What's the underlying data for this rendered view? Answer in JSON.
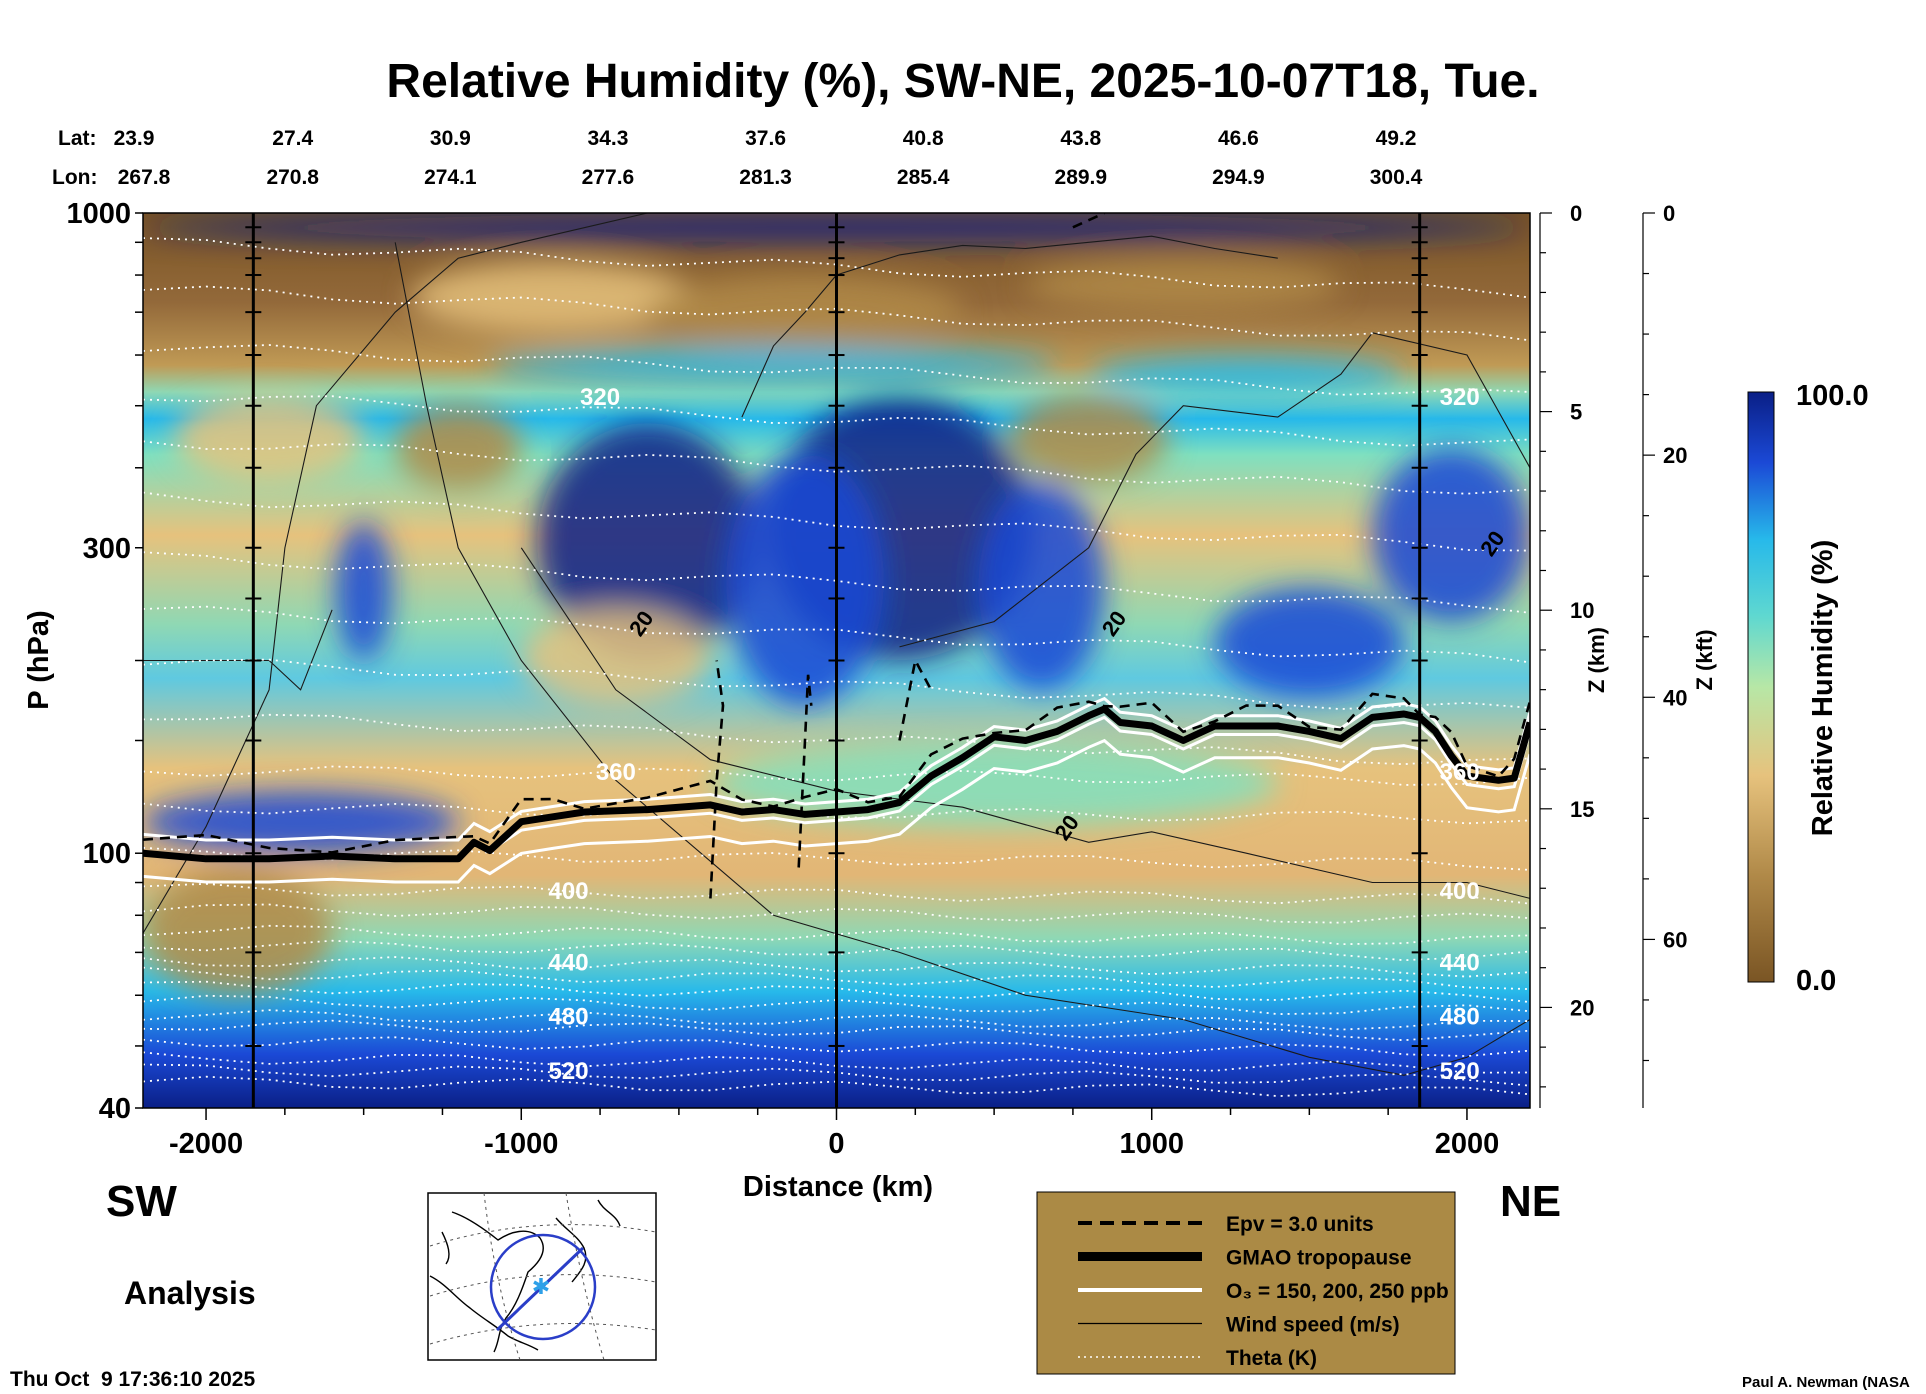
{
  "title": "Relative Humidity (%), SW-NE, 2025-10-07T18, Tue.",
  "colors": {
    "dry_dark": "#7a5524",
    "dry": "#b08948",
    "mid": "#e6c27d",
    "moist": "#7fe0c0",
    "wet": "#27b9ea",
    "very_wet": "#1b49d6",
    "saturated": "#0a1f86",
    "legend_box": "#ab8a45"
  },
  "chart_data": {
    "type": "heatmap",
    "title": "Relative Humidity (%), SW-NE, 2025-10-07T18, Tue.",
    "xlabel": "Distance (km)",
    "ylabel": "P (hPa)",
    "y2label": "Z (km)",
    "y3label": "Z (kft)",
    "xlim": [
      -2200,
      2200
    ],
    "ylim": [
      1000,
      40
    ],
    "y_scale": "log",
    "x_ticks": [
      -2000,
      -1000,
      0,
      1000,
      2000
    ],
    "y_ticks": [
      1000,
      300,
      100,
      40
    ],
    "z_km_ticks": [
      0,
      5,
      10,
      15,
      20
    ],
    "z_kft_ticks": [
      0,
      20,
      40,
      60
    ],
    "endpoints": {
      "left": "SW",
      "right": "NE"
    },
    "lat_label": "Lat:",
    "lon_label": "Lon:",
    "lat_ticks": [
      "23.9",
      "27.4",
      "30.9",
      "34.3",
      "37.6",
      "40.8",
      "43.8",
      "46.6",
      "49.2"
    ],
    "lon_ticks": [
      "267.8",
      "270.8",
      "274.1",
      "277.6",
      "281.3",
      "285.4",
      "289.9",
      "294.9",
      "300.4"
    ],
    "lat_lon_x": [
      -2200,
      -1725,
      -1225,
      -725,
      -225,
      275,
      775,
      1275,
      1775
    ],
    "vertical_lines_x": [
      -1850,
      0,
      1850
    ],
    "colorbar": {
      "label": "Relative Humidity (%)",
      "min": 0.0,
      "max": 100.0,
      "min_label": "0.0",
      "max_label": "100.0"
    },
    "tropopause": {
      "x": [
        -2200,
        -2000,
        -1800,
        -1600,
        -1400,
        -1200,
        -1150,
        -1100,
        -1000,
        -900,
        -800,
        -600,
        -400,
        -300,
        -200,
        -100,
        0,
        100,
        200,
        300,
        400,
        500,
        600,
        700,
        800,
        850,
        900,
        1000,
        1100,
        1200,
        1300,
        1400,
        1500,
        1600,
        1700,
        1800,
        1850,
        1900,
        1950,
        2000,
        2100,
        2150,
        2200
      ],
      "p": [
        100,
        98,
        98,
        99,
        98,
        98,
        104,
        101,
        112,
        114,
        116,
        117,
        119,
        116,
        117,
        115,
        116,
        117,
        120,
        132,
        141,
        152,
        150,
        155,
        164,
        168,
        160,
        158,
        150,
        158,
        158,
        158,
        155,
        151,
        163,
        165,
        163,
        155,
        142,
        132,
        130,
        131,
        160
      ]
    },
    "theta_contours": [
      {
        "label": "520",
        "p": 46
      },
      {
        "label": "480",
        "p": 56
      },
      {
        "label": "440",
        "p": 68
      },
      {
        "label": "400",
        "p": 88
      },
      {
        "label": "360",
        "p": 135
      },
      {
        "label": "320",
        "p": 520
      }
    ],
    "wind_labels": [
      {
        "label": "20",
        "x": 750,
        "p": 108
      },
      {
        "label": "20",
        "x": -600,
        "p": 225
      },
      {
        "label": "20",
        "x": 900,
        "p": 225
      },
      {
        "label": "20",
        "x": 2100,
        "p": 300
      }
    ],
    "legend": [
      {
        "style": "dashed",
        "label": "Epv = 3.0 units"
      },
      {
        "style": "thick",
        "label": "GMAO tropopause"
      },
      {
        "style": "white",
        "label": "O₃ = 150, 200, 250 ppb"
      },
      {
        "style": "thin",
        "label": "Wind speed (m/s)"
      },
      {
        "style": "dotted",
        "label": "Theta (K)"
      }
    ]
  },
  "labels": {
    "analysis": "Analysis",
    "timestamp": "Thu Oct  9 17:36:10 2025",
    "credit": "Paul A. Newman (NASA"
  },
  "inset_map": {
    "icon": "globe-map-icon"
  }
}
